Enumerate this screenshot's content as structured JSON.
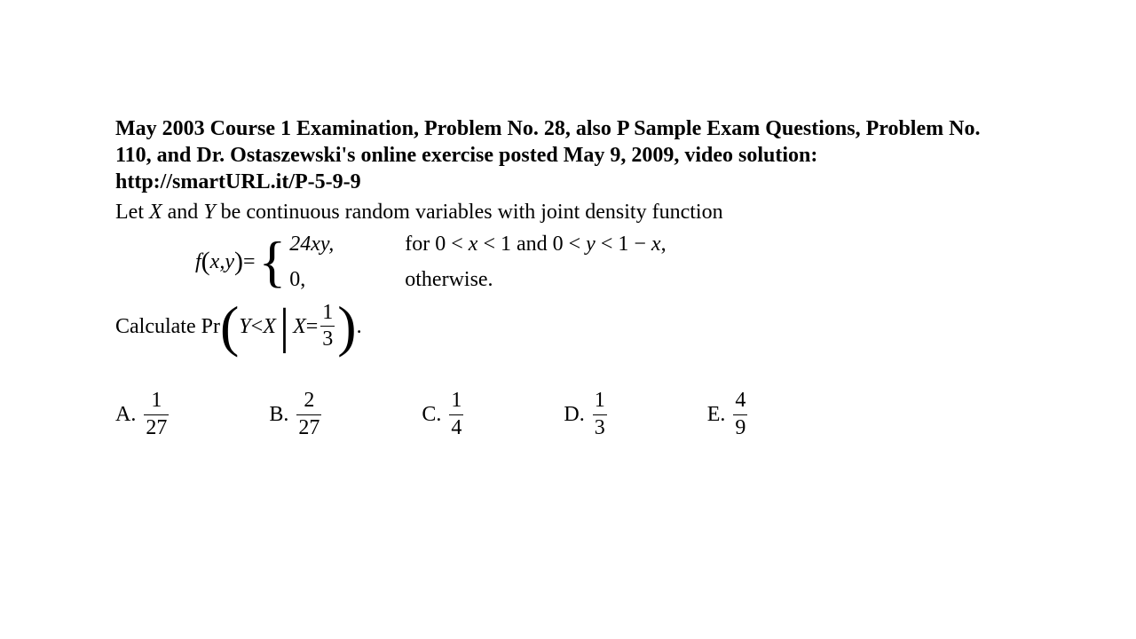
{
  "header": "May 2003 Course 1 Examination, Problem No. 28, also P Sample Exam Questions, Problem No. 110, and Dr. Ostaszewski's online exercise posted May 9, 2009, video solution: http://smartURL.it/P-5-9-9",
  "intro_prefix": "Let ",
  "intro_var1": "X",
  "intro_and": " and ",
  "intro_var2": "Y",
  "intro_suffix": " be continuous random variables with joint density function",
  "fxy_left": "f",
  "fxy_paren_open": "(",
  "fxy_args": "x,y",
  "fxy_paren_close": ")",
  "fxy_eq": " = ",
  "case1_value": "24xy,",
  "case1_cond_prefix": "for 0 < ",
  "case1_cond_x": "x",
  "case1_cond_mid": " < 1 and 0 < ",
  "case1_cond_y": "y",
  "case1_cond_lt": " < 1 − ",
  "case1_cond_xb": "x",
  "case1_cond_comma": ",",
  "case2_value": "0,",
  "case2_cond": "otherwise.",
  "calc_prefix": "Calculate  Pr",
  "calc_Y": "Y",
  "calc_lt": " < ",
  "calc_X1": "X",
  "calc_X2": "X",
  "calc_eq": " = ",
  "frac_main_num": "1",
  "frac_main_den": "3",
  "calc_period": ".",
  "choiceA_label": "A.",
  "choiceA_num": "1",
  "choiceA_den": "27",
  "choiceB_label": "B.",
  "choiceB_num": "2",
  "choiceB_den": "27",
  "choiceC_label": "C.",
  "choiceC_num": "1",
  "choiceC_den": "4",
  "choiceD_label": "D.",
  "choiceD_num": "1",
  "choiceD_den": "3",
  "choiceE_label": "E.",
  "choiceE_num": "4",
  "choiceE_den": "9"
}
